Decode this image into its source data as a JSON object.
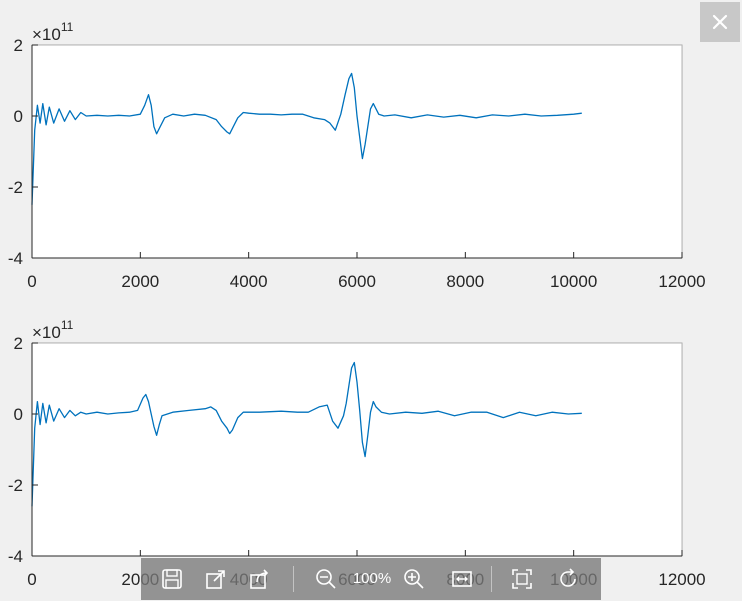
{
  "window": {
    "close_icon": "close-icon",
    "colors": {
      "background": "#f0f0f0",
      "axes": "#ffffff",
      "axis_line": "#262626",
      "series": "#0072bd"
    }
  },
  "toolbar": {
    "zoom_label": "100%",
    "buttons": [
      "save-icon",
      "open-external-icon",
      "share-icon",
      "zoom-out-icon",
      "zoom-in-icon",
      "fit-width-icon",
      "fit-page-icon",
      "rotate-icon"
    ]
  },
  "chart_data": [
    {
      "type": "line",
      "exponent_label": "×10",
      "exponent_power": "11",
      "xlim": [
        0,
        12000
      ],
      "ylim": [
        -4,
        2
      ],
      "xticks": [
        "0",
        "2000",
        "4000",
        "6000",
        "8000",
        "10000",
        "12000"
      ],
      "yticks": [
        "2",
        "0",
        "-2",
        "-4"
      ],
      "y_scale": 100000000000.0,
      "grid": false,
      "series": [
        {
          "x": [
            0,
            50,
            100,
            150,
            200,
            260,
            320,
            400,
            500,
            600,
            700,
            800,
            900,
            1000,
            1200,
            1400,
            1600,
            1800,
            2000,
            2080,
            2150,
            2200,
            2250,
            2300,
            2350,
            2450,
            2600,
            2800,
            3000,
            3200,
            3400,
            3500,
            3600,
            3650,
            3700,
            3800,
            3900,
            4000,
            4200,
            4400,
            4600,
            4800,
            5000,
            5200,
            5400,
            5500,
            5600,
            5700,
            5780,
            5850,
            5900,
            5950,
            6000,
            6050,
            6100,
            6150,
            6200,
            6250,
            6300,
            6400,
            6500,
            6700,
            7000,
            7300,
            7600,
            7900,
            8200,
            8500,
            8800,
            9100,
            9400,
            9700,
            10000,
            10150
          ],
          "y": [
            -2.5,
            -0.4,
            0.3,
            -0.2,
            0.35,
            -0.25,
            0.25,
            -0.2,
            0.2,
            -0.15,
            0.15,
            -0.1,
            0.1,
            0,
            0.02,
            0,
            0.02,
            0,
            0.05,
            0.3,
            0.6,
            0.3,
            -0.3,
            -0.5,
            -0.35,
            -0.05,
            0.05,
            0,
            0.05,
            0.02,
            -0.1,
            -0.3,
            -0.45,
            -0.5,
            -0.35,
            -0.05,
            0.1,
            0.08,
            0.05,
            0.05,
            0.03,
            0.05,
            0.05,
            -0.05,
            -0.1,
            -0.2,
            -0.4,
            0.05,
            0.6,
            1.05,
            1.2,
            0.8,
            0,
            -0.6,
            -1.2,
            -0.8,
            -0.3,
            0.2,
            0.35,
            0.05,
            0,
            0.03,
            -0.05,
            0.03,
            -0.03,
            0.02,
            -0.05,
            0.03,
            0,
            0.05,
            0,
            0.02,
            0.05,
            0.08
          ]
        }
      ]
    },
    {
      "type": "line",
      "exponent_label": "×10",
      "exponent_power": "11",
      "xlim": [
        0,
        12000
      ],
      "ylim": [
        -4,
        2
      ],
      "xticks": [
        "0",
        "2000",
        "4000",
        "6000",
        "8000",
        "10000",
        "12000"
      ],
      "yticks": [
        "2",
        "0",
        "-2",
        "-4"
      ],
      "y_scale": 100000000000.0,
      "grid": false,
      "series": [
        {
          "x": [
            0,
            50,
            100,
            150,
            200,
            260,
            320,
            400,
            500,
            600,
            700,
            800,
            900,
            1000,
            1200,
            1400,
            1600,
            1800,
            1950,
            2050,
            2100,
            2150,
            2200,
            2250,
            2300,
            2350,
            2400,
            2600,
            2900,
            3200,
            3300,
            3400,
            3500,
            3600,
            3650,
            3700,
            3800,
            3900,
            4200,
            4600,
            4900,
            5100,
            5300,
            5450,
            5550,
            5650,
            5750,
            5800,
            5850,
            5900,
            5950,
            6000,
            6050,
            6100,
            6150,
            6200,
            6250,
            6300,
            6350,
            6450,
            6600,
            6900,
            7200,
            7500,
            7800,
            8100,
            8400,
            8700,
            9000,
            9300,
            9600,
            9900,
            10150
          ],
          "y": [
            -2.6,
            -0.4,
            0.35,
            -0.3,
            0.3,
            -0.25,
            0.25,
            -0.2,
            0.15,
            -0.1,
            0.1,
            -0.05,
            0.05,
            0,
            0.05,
            0,
            0.03,
            0.05,
            0.1,
            0.45,
            0.55,
            0.35,
            0,
            -0.35,
            -0.6,
            -0.3,
            -0.05,
            0.05,
            0.1,
            0.15,
            0.2,
            0.1,
            -0.2,
            -0.4,
            -0.55,
            -0.45,
            -0.1,
            0.05,
            0.05,
            0.08,
            0.05,
            0.05,
            0.2,
            0.25,
            -0.2,
            -0.4,
            -0.05,
            0.3,
            0.8,
            1.3,
            1.45,
            0.9,
            0.1,
            -0.8,
            -1.2,
            -0.6,
            0.05,
            0.35,
            0.2,
            0.05,
            0,
            0.05,
            0.02,
            0.08,
            -0.05,
            0.05,
            0.05,
            -0.1,
            0.05,
            -0.05,
            0.05,
            0,
            0.02
          ]
        }
      ]
    }
  ]
}
